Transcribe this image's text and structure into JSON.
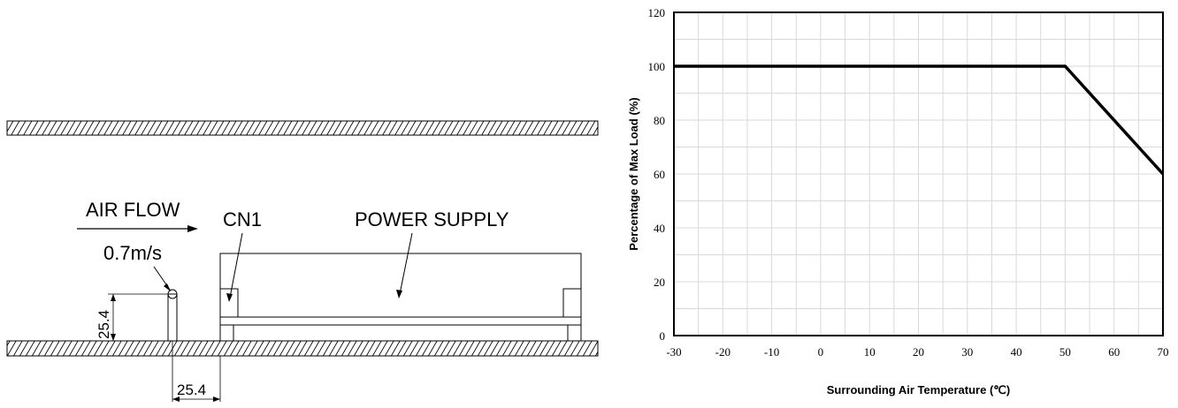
{
  "diagram": {
    "air_flow_label": "AIR FLOW",
    "air_speed_label": "0.7m/s",
    "connector_label": "CN1",
    "power_supply_label": "POWER SUPPLY",
    "sensor_height_label": "25.4",
    "sensor_distance_label": "25.4"
  },
  "chart_data": {
    "type": "line",
    "title": "",
    "xlabel": "Surrounding Air Temperature (℃)",
    "ylabel": "Percentage of Max Load (%)",
    "xlim": [
      -30,
      70
    ],
    "ylim": [
      0,
      120
    ],
    "xticks": [
      -30,
      -20,
      -10,
      0,
      10,
      20,
      30,
      40,
      50,
      60,
      70
    ],
    "yticks": [
      0,
      20,
      40,
      60,
      80,
      100,
      120
    ],
    "grid": true,
    "minor_grid_step_x": 5,
    "minor_grid_step_y": 10,
    "series": [
      {
        "x": [
          -30,
          50,
          70
        ],
        "y": [
          100,
          100,
          60
        ]
      }
    ]
  }
}
